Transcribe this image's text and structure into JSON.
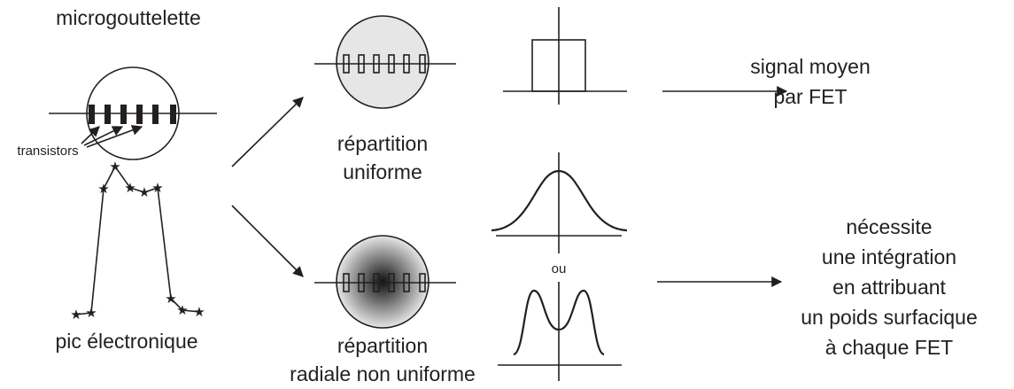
{
  "left": {
    "title": "microgouttelette",
    "transistors_label": "transistors",
    "peak_label": "pic électronique"
  },
  "uniform": {
    "label_lines": [
      "répartition",
      "uniforme"
    ]
  },
  "radial": {
    "label_lines": [
      "répartition",
      "radiale non uniforme"
    ]
  },
  "or_label": "ou",
  "result_uniform": {
    "lines": [
      "signal moyen",
      "par FET"
    ]
  },
  "result_radial": {
    "lines": [
      "nécessite",
      "une intégration",
      "en attribuant",
      "un poids surfacique",
      "à chaque FET"
    ]
  }
}
